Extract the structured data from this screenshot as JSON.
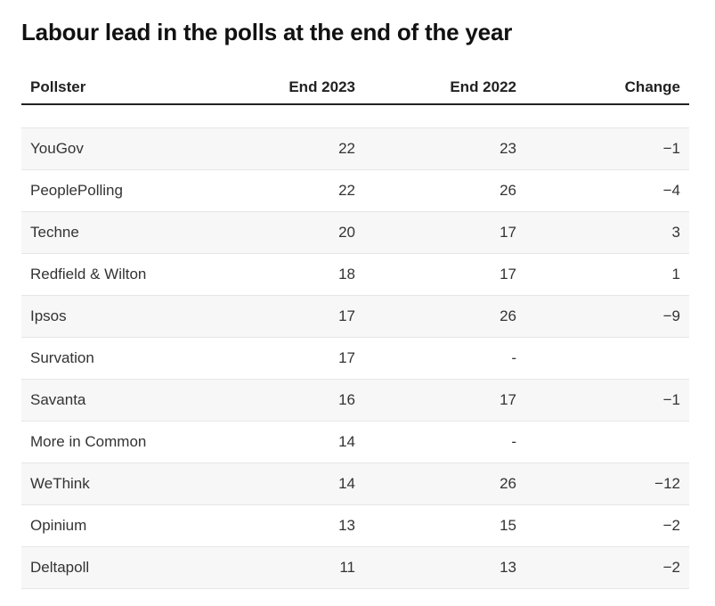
{
  "chart_data": {
    "type": "table",
    "title": "Labour lead in the polls at the end of the year",
    "columns": [
      "Pollster",
      "End 2023",
      "End 2022",
      "Change"
    ],
    "rows": [
      {
        "pollster": "YouGov",
        "end_2023": "22",
        "end_2022": "23",
        "change": "−1"
      },
      {
        "pollster": "PeoplePolling",
        "end_2023": "22",
        "end_2022": "26",
        "change": "−4"
      },
      {
        "pollster": "Techne",
        "end_2023": "20",
        "end_2022": "17",
        "change": "3"
      },
      {
        "pollster": "Redfield & Wilton",
        "end_2023": "18",
        "end_2022": "17",
        "change": "1"
      },
      {
        "pollster": "Ipsos",
        "end_2023": "17",
        "end_2022": "26",
        "change": "−9"
      },
      {
        "pollster": "Survation",
        "end_2023": "17",
        "end_2022": "-",
        "change": ""
      },
      {
        "pollster": "Savanta",
        "end_2023": "16",
        "end_2022": "17",
        "change": "−1"
      },
      {
        "pollster": "More in Common",
        "end_2023": "14",
        "end_2022": "-",
        "change": ""
      },
      {
        "pollster": "WeThink",
        "end_2023": "14",
        "end_2022": "26",
        "change": "−12"
      },
      {
        "pollster": "Opinium",
        "end_2023": "13",
        "end_2022": "15",
        "change": "−2"
      },
      {
        "pollster": "Deltapoll",
        "end_2023": "11",
        "end_2022": "13",
        "change": "−2"
      }
    ]
  }
}
